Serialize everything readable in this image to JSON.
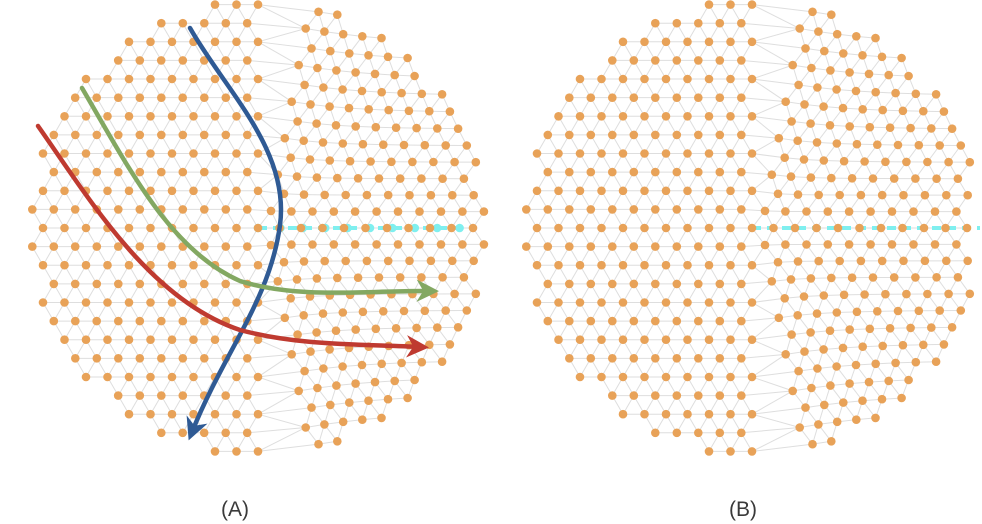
{
  "captions": {
    "panel_a": "(A)",
    "panel_b": "(B)"
  },
  "colors": {
    "node": "#e8a258",
    "edge": "#dedede",
    "seam": "#7fefef",
    "path_blue": "#2f5a94",
    "path_green": "#83a862",
    "path_red": "#bf3a30",
    "caption": "#3a3a3a"
  },
  "panels": [
    {
      "id": "A",
      "lattice": "triangular-with-disclination",
      "paths": [
        "blue",
        "green",
        "red"
      ],
      "seam": "dashed-cyan"
    },
    {
      "id": "B",
      "lattice": "triangular-with-disclination",
      "paths": [],
      "seam": "dashed-cyan"
    }
  ]
}
